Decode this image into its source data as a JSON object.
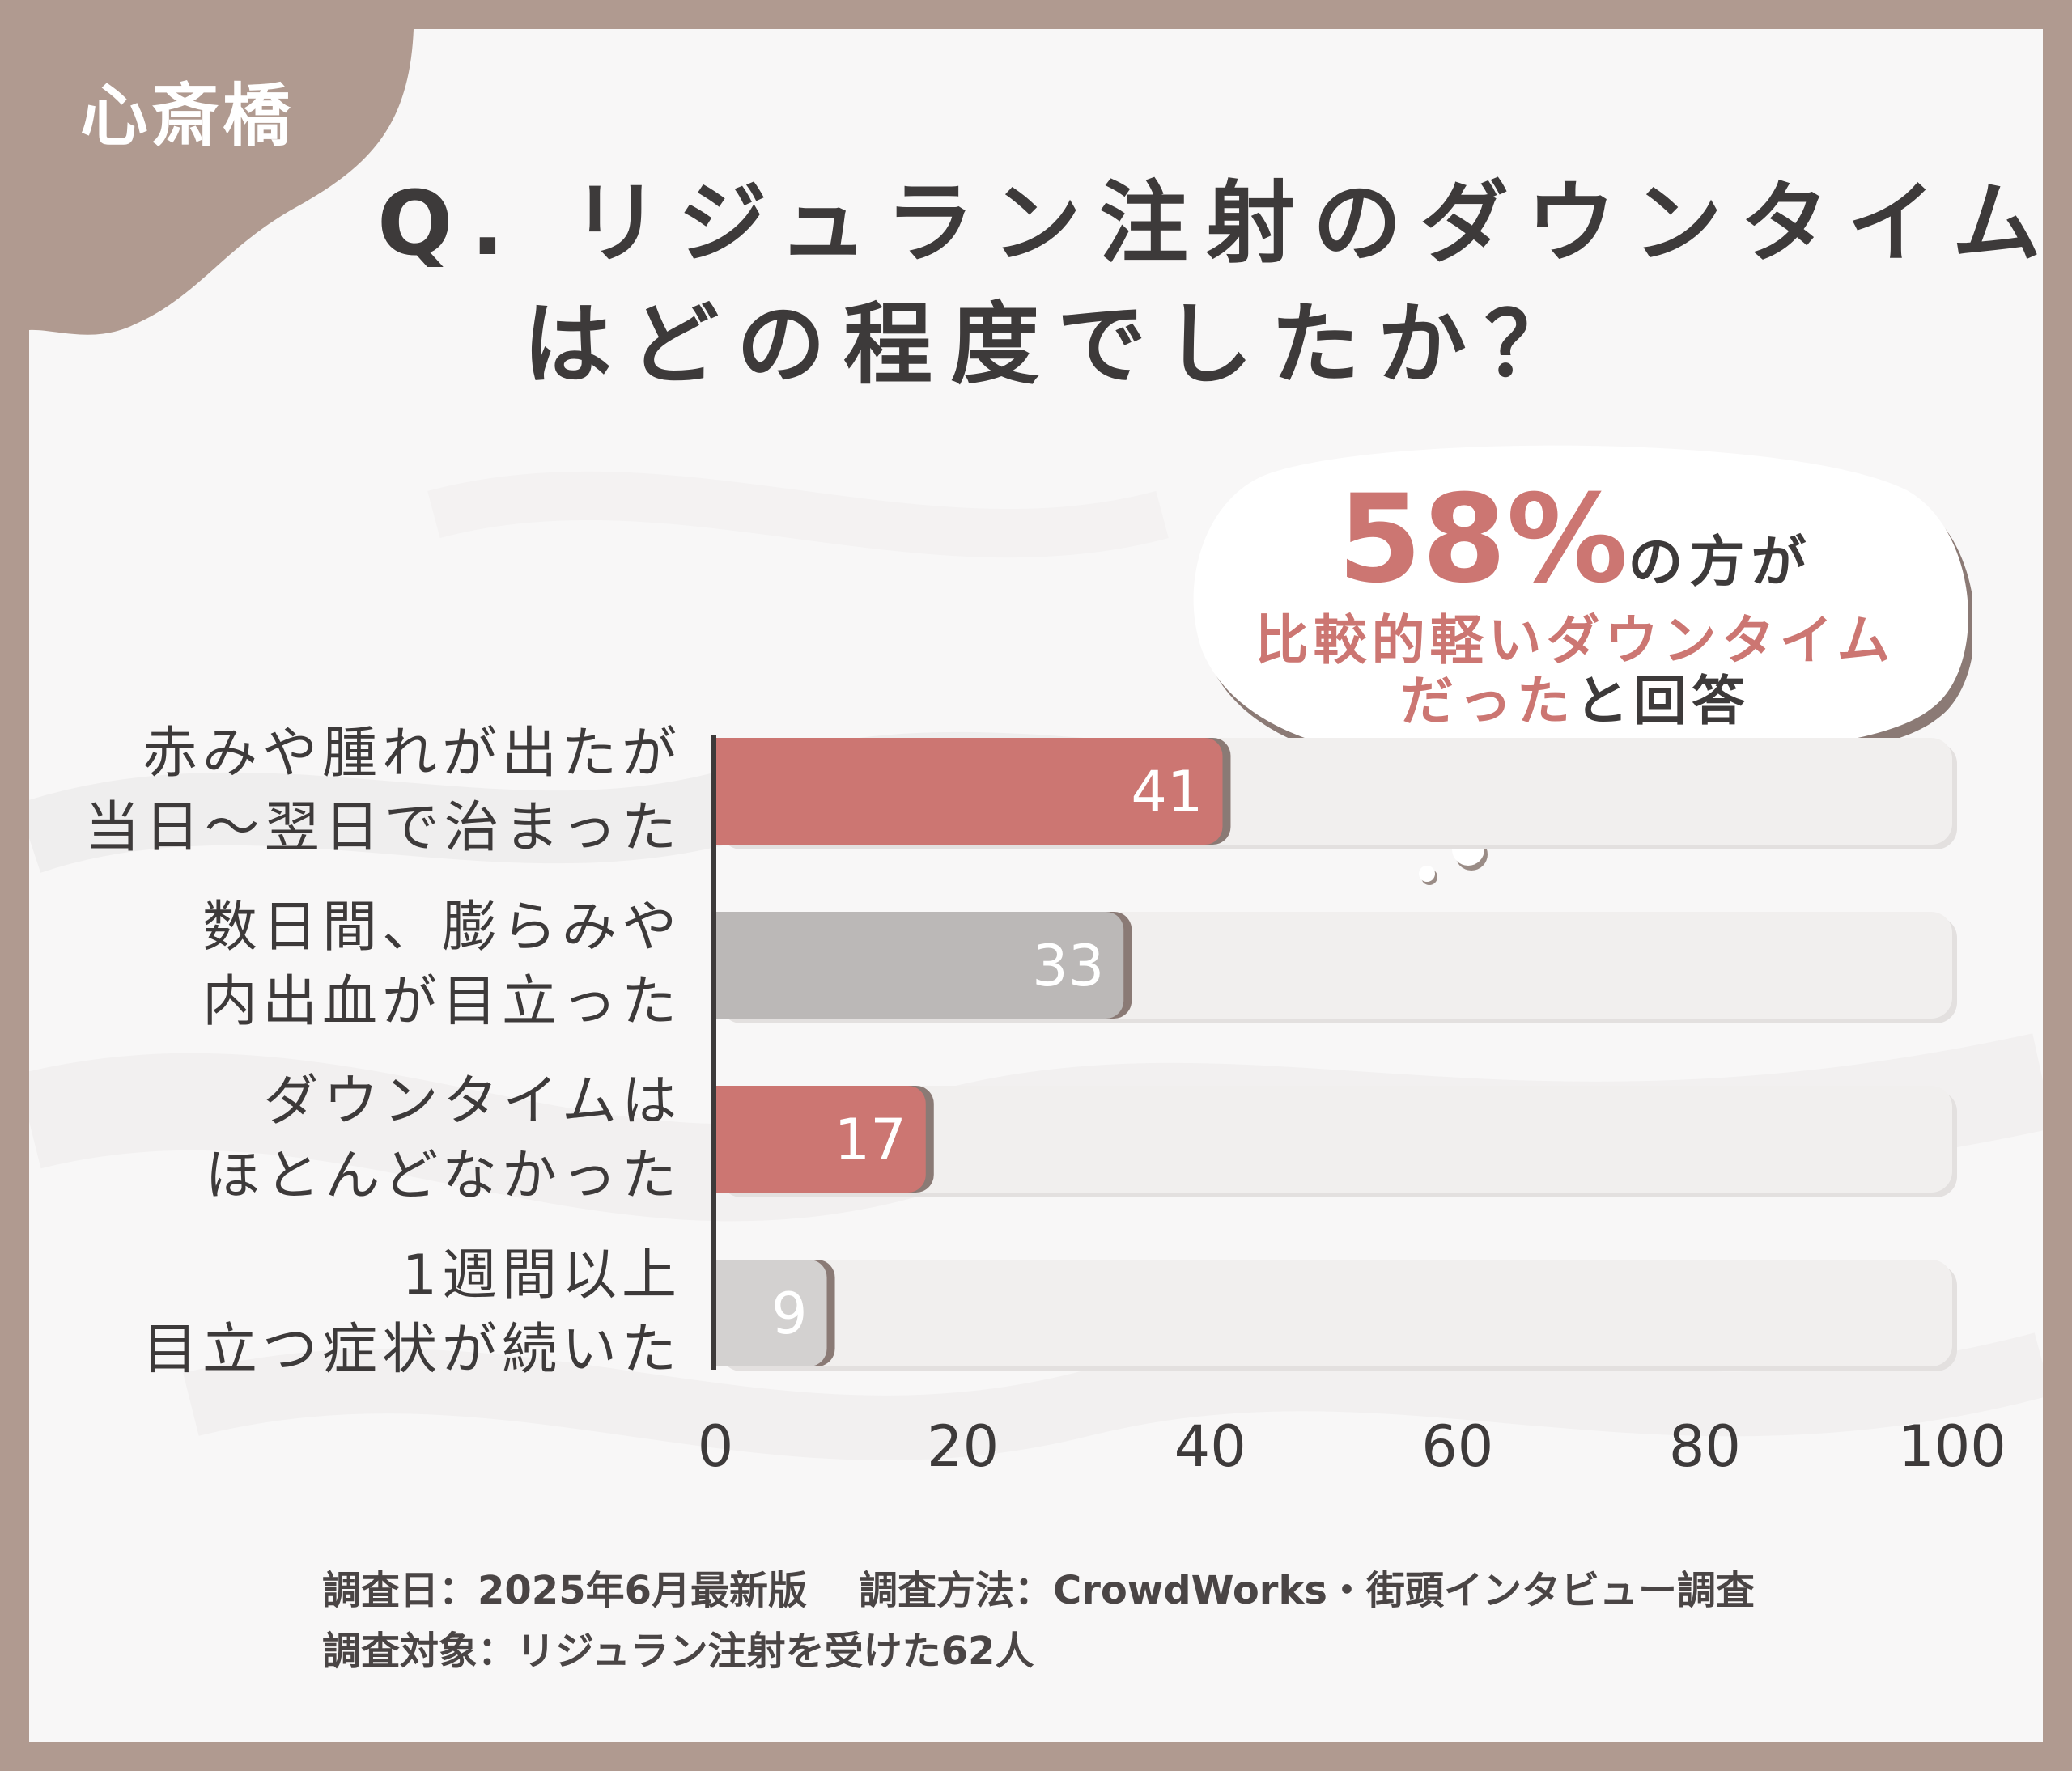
{
  "location_tag": "心斎橋",
  "title": {
    "line1": "Q. リジュラン注射のダウンタイム",
    "line2": "はどの程度でしたか？"
  },
  "callout": {
    "percent": "58%",
    "percent_suffix": "の方が",
    "highlight": "比較的軽いダウンタイム",
    "highlight2": "だった",
    "suffix": "と回答"
  },
  "chart_data": {
    "type": "bar",
    "orientation": "horizontal",
    "categories": [
      [
        "赤みや腫れが出たが",
        "当日～翌日で治まった"
      ],
      [
        "数日間、膨らみや",
        "内出血が目立った"
      ],
      [
        "ダウンタイムは",
        "ほとんどなかった"
      ],
      [
        "1週間以上",
        "目立つ症状が続いた"
      ]
    ],
    "values": [
      41,
      33,
      17,
      9
    ],
    "value_labels": [
      "41",
      "33",
      "17",
      "9"
    ],
    "bar_colors": [
      "#cc7672",
      "#bbb8b7",
      "#cc7672",
      "#d3d1d0"
    ],
    "xlim": [
      0,
      100
    ],
    "xticks": [
      "0",
      "20",
      "40",
      "60",
      "80",
      "100"
    ],
    "title": "Q. リジュラン注射のダウンタイムはどの程度でしたか？",
    "xlabel": "",
    "ylabel": ""
  },
  "footnote": {
    "date": "調査日：2025年6月最新版",
    "method": "調査方法：CrowdWorks・街頭インタビュー調査",
    "target": "調査対象：リジュラン注射を受けた62人"
  },
  "colors": {
    "frame": "#b09a90",
    "accent": "#cc7672",
    "text": "#3d3a3a",
    "track": "#f1efee"
  }
}
